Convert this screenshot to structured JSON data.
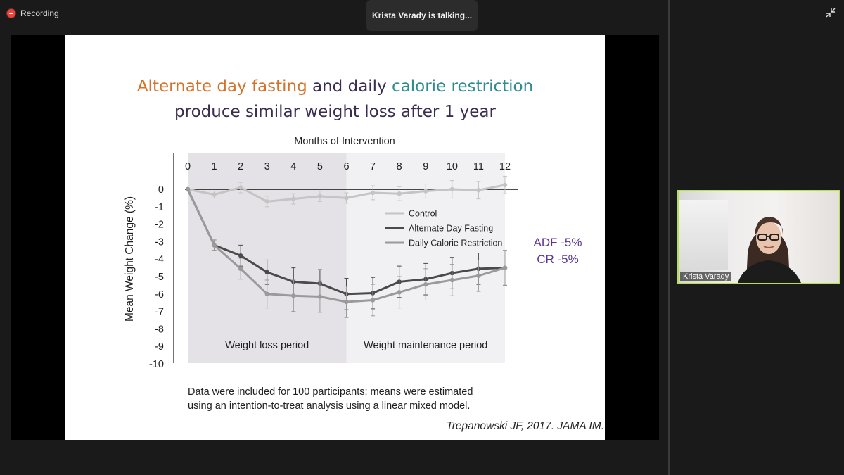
{
  "window": {
    "recording_label": "Recording",
    "talking_indicator": "Krista Varady is talking..."
  },
  "icons": {
    "recording": "record-dot-icon",
    "collapse": "collapse-arrows-icon"
  },
  "slide": {
    "title_part1": "Alternate day fasting",
    "title_part2": " and daily ",
    "title_part3": "calorie restriction",
    "title_line2": "produce similar weight loss after 1 year",
    "adf_label": "ADF -5%",
    "cr_label": "CR -5%",
    "footnote_line1": "Data were included for 100 participants; means were estimated",
    "footnote_line2": "using an intention-to-treat analysis using a linear mixed model.",
    "citation": "Trepanowski JF, 2017. JAMA IM."
  },
  "participant": {
    "name": "Krista Varady"
  },
  "colors": {
    "title_orange": "#d4722a",
    "title_teal": "#2f8c91",
    "title_dark": "#3a2d4f",
    "note_purple": "#5b3596",
    "speaker_border": "#b8e04a",
    "recording_red": "#e8453c"
  },
  "chart_data": {
    "type": "line",
    "title": "Months of Intervention",
    "xlabel": "Months of Intervention",
    "ylabel": "Mean Weight Change (%)",
    "x": [
      0,
      1,
      2,
      3,
      4,
      5,
      6,
      7,
      8,
      9,
      10,
      11,
      12
    ],
    "yticks": [
      0,
      -1,
      -2,
      -3,
      -4,
      -5,
      -6,
      -7,
      -8,
      -9,
      -10
    ],
    "ylim": [
      -10,
      0
    ],
    "xlim": [
      0,
      12
    ],
    "legend_position": "upper-right",
    "periods": [
      {
        "label": "Weight loss period",
        "x_start": 0,
        "x_end": 6
      },
      {
        "label": "Weight maintenance period",
        "x_start": 6,
        "x_end": 12
      }
    ],
    "series": [
      {
        "name": "Control",
        "color": "#c4c4c4",
        "values": [
          0,
          -0.3,
          0.1,
          -0.7,
          -0.55,
          -0.4,
          -0.5,
          -0.2,
          -0.25,
          -0.1,
          0,
          -0.05,
          0.25
        ],
        "errors": [
          0,
          0.2,
          0.3,
          0.3,
          0.3,
          0.3,
          0.3,
          0.4,
          0.4,
          0.4,
          0.5,
          0.5,
          0.5
        ]
      },
      {
        "name": "Alternate Day Fasting",
        "color": "#4a4a4a",
        "values": [
          0,
          -3.2,
          -3.8,
          -4.75,
          -5.3,
          -5.4,
          -6.0,
          -5.95,
          -5.3,
          -5.15,
          -4.8,
          -4.55,
          -4.5
        ],
        "errors": [
          0,
          0.3,
          0.6,
          0.7,
          0.8,
          0.8,
          0.9,
          0.9,
          0.9,
          0.9,
          0.9,
          0.9,
          1.0
        ]
      },
      {
        "name": "Daily Calorie Restriction",
        "color": "#9a9a9a",
        "values": [
          0,
          -3.2,
          -4.55,
          -6.0,
          -6.1,
          -6.15,
          -6.45,
          -6.35,
          -5.9,
          -5.45,
          -5.2,
          -4.95,
          -4.5
        ],
        "errors": [
          0,
          0.3,
          0.6,
          0.8,
          0.9,
          0.9,
          0.9,
          0.9,
          0.9,
          0.9,
          0.9,
          0.9,
          1.0
        ]
      }
    ]
  }
}
